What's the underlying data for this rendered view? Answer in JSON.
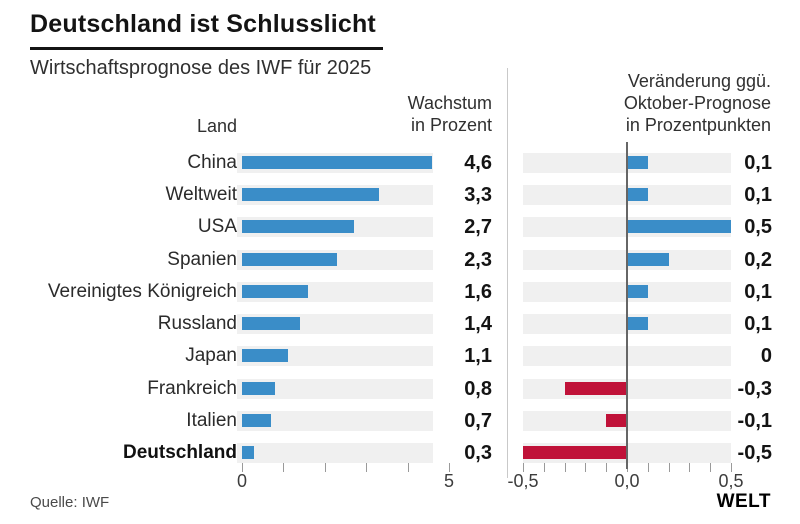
{
  "title": "Deutschland ist Schlusslicht",
  "subtitle": "Wirtschaftsprognose des IWF für 2025",
  "columns": {
    "land": "Land",
    "left_header_line1": "Wachstum",
    "left_header_line2": "in Prozent",
    "right_header_line1": "Veränderung ggü.",
    "right_header_line2": "Oktober-Prognose",
    "right_header_line3": "in Prozentpunkten"
  },
  "source": "Quelle: IWF",
  "logo": "WELT",
  "colors": {
    "bar_positive": "#3a8dc8",
    "bar_negative": "#c01239",
    "track": "#f0f0f0"
  },
  "chart_data": {
    "type": "bar",
    "orientation": "horizontal",
    "categories": [
      "China",
      "Weltweit",
      "USA",
      "Spanien",
      "Vereinigtes Königreich",
      "Russland",
      "Japan",
      "Frankreich",
      "Italien",
      "Deutschland"
    ],
    "highlight_category": "Deutschland",
    "series": [
      {
        "name": "Wachstum in Prozent",
        "values": [
          4.6,
          3.3,
          2.7,
          2.3,
          1.6,
          1.4,
          1.1,
          0.8,
          0.7,
          0.3
        ],
        "value_labels": [
          "4,6",
          "3,3",
          "2,7",
          "2,3",
          "1,6",
          "1,4",
          "1,1",
          "0,8",
          "0,7",
          "0,3"
        ],
        "axis": {
          "min": 0,
          "max": 5,
          "ticks": [
            0,
            1,
            2,
            3,
            4,
            5
          ],
          "tick_labels": [
            {
              "value": 0,
              "text": "0"
            },
            {
              "value": 5,
              "text": "5"
            }
          ]
        }
      },
      {
        "name": "Veränderung ggü. Oktober-Prognose in Prozentpunkten",
        "values": [
          0.1,
          0.1,
          0.5,
          0.2,
          0.1,
          0.1,
          0,
          -0.3,
          -0.1,
          -0.5
        ],
        "value_labels": [
          "0,1",
          "0,1",
          "0,5",
          "0,2",
          "0,1",
          "0,1",
          "0",
          "-0,3",
          "-0,1",
          "-0,5"
        ],
        "axis": {
          "min": -0.5,
          "max": 0.5,
          "ticks": [
            -0.5,
            -0.4,
            -0.3,
            -0.2,
            -0.1,
            0,
            0.1,
            0.2,
            0.3,
            0.4,
            0.5
          ],
          "tick_labels": [
            {
              "value": -0.5,
              "text": "-0,5"
            },
            {
              "value": 0,
              "text": "0,0"
            },
            {
              "value": 0.5,
              "text": "0,5"
            }
          ]
        }
      }
    ]
  }
}
